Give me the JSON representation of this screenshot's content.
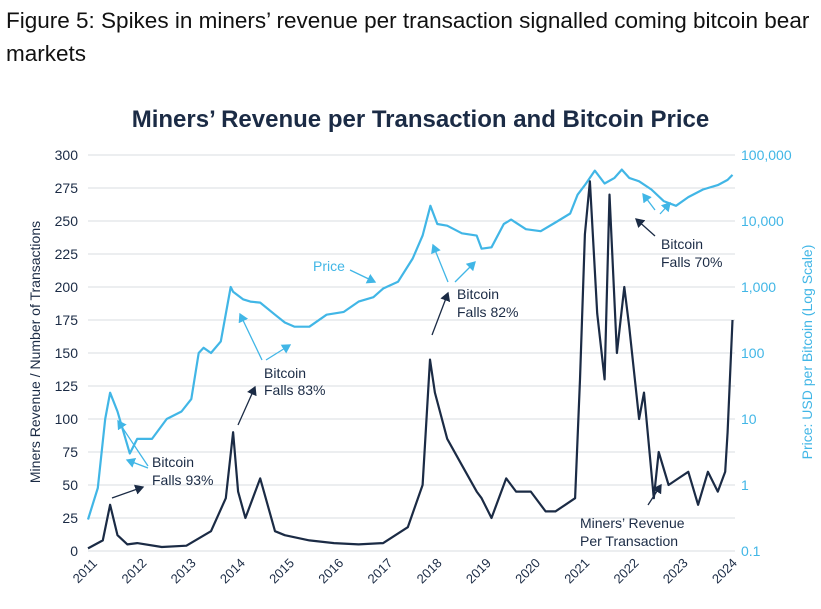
{
  "figure_caption": "Figure 5: Spikes in miners’ revenue per transaction signalled coming bitcoin bear markets",
  "chart_data": {
    "type": "line",
    "title": "Miners’ Revenue per Transaction and Bitcoin Price",
    "ylabel_left": "Miners Revenue / Number of Transactions",
    "ylabel_right": "Price: USD per Bitcoin (Log Scale)",
    "ylim_left": [
      0,
      300
    ],
    "ylim_right": [
      0.1,
      100000
    ],
    "right_scale": "log",
    "x_ticks": [
      "2011",
      "2012",
      "2013",
      "2014",
      "2015",
      "2016",
      "2017",
      "2018",
      "2019",
      "2020",
      "2021",
      "2022",
      "2023",
      "2024"
    ],
    "left_ticks": [
      "0",
      "25",
      "50",
      "75",
      "100",
      "125",
      "150",
      "175",
      "200",
      "225",
      "250",
      "275",
      "300"
    ],
    "right_ticks": [
      "0.1",
      "1",
      "10",
      "100",
      "1,000",
      "10,000",
      "100,000"
    ],
    "grid": "horizontal",
    "colors": {
      "price": "#41b6e6",
      "revenue": "#1b2b45"
    },
    "series": [
      {
        "label": "Price",
        "axis": "right",
        "x": [
          2011.0,
          2011.2,
          2011.35,
          2011.45,
          2011.6,
          2011.85,
          2012.0,
          2012.3,
          2012.6,
          2012.9,
          2013.1,
          2013.25,
          2013.35,
          2013.5,
          2013.7,
          2013.9,
          2013.95,
          2014.15,
          2014.3,
          2014.5,
          2014.8,
          2015.0,
          2015.2,
          2015.5,
          2015.85,
          2016.2,
          2016.5,
          2016.8,
          2017.0,
          2017.3,
          2017.6,
          2017.8,
          2017.96,
          2018.1,
          2018.3,
          2018.6,
          2018.9,
          2019.0,
          2019.2,
          2019.45,
          2019.6,
          2019.9,
          2020.2,
          2020.5,
          2020.8,
          2020.95,
          2021.1,
          2021.3,
          2021.5,
          2021.7,
          2021.85,
          2022.0,
          2022.2,
          2022.45,
          2022.7,
          2022.95,
          2023.2,
          2023.5,
          2023.8,
          2024.0,
          2024.1
        ],
        "values": [
          0.3,
          0.9,
          10,
          25,
          13,
          3,
          5,
          5,
          10,
          13,
          20,
          100,
          120,
          100,
          150,
          1000,
          850,
          650,
          600,
          580,
          380,
          290,
          250,
          250,
          380,
          420,
          600,
          700,
          950,
          1200,
          2700,
          6000,
          17000,
          9000,
          8500,
          6500,
          6000,
          3800,
          4000,
          9000,
          10500,
          7500,
          7000,
          9500,
          13000,
          25000,
          35000,
          58000,
          37000,
          45000,
          60000,
          45000,
          40000,
          30000,
          20000,
          17000,
          23000,
          30000,
          35000,
          42000,
          50000
        ]
      },
      {
        "label": "Miners' Revenue Per Transaction",
        "axis": "left",
        "x": [
          2011.0,
          2011.3,
          2011.45,
          2011.6,
          2011.8,
          2012.0,
          2012.5,
          2013.0,
          2013.5,
          2013.8,
          2013.95,
          2014.05,
          2014.2,
          2014.5,
          2014.8,
          2015.0,
          2015.5,
          2016.0,
          2016.5,
          2017.0,
          2017.5,
          2017.8,
          2017.95,
          2018.05,
          2018.3,
          2018.6,
          2018.9,
          2019.0,
          2019.2,
          2019.5,
          2019.7,
          2020.0,
          2020.3,
          2020.5,
          2020.7,
          2020.9,
          2021.0,
          2021.1,
          2021.2,
          2021.35,
          2021.5,
          2021.6,
          2021.75,
          2021.9,
          2022.0,
          2022.2,
          2022.3,
          2022.5,
          2022.6,
          2022.8,
          2023.0,
          2023.2,
          2023.4,
          2023.6,
          2023.8,
          2023.95,
          2024.0,
          2024.1
        ],
        "values": [
          2,
          8,
          35,
          12,
          5,
          6,
          3,
          4,
          15,
          40,
          90,
          45,
          25,
          55,
          15,
          12,
          8,
          6,
          5,
          6,
          18,
          50,
          145,
          120,
          85,
          65,
          45,
          40,
          25,
          55,
          45,
          45,
          30,
          30,
          35,
          40,
          130,
          240,
          280,
          180,
          130,
          270,
          150,
          200,
          170,
          100,
          120,
          40,
          75,
          50,
          55,
          60,
          35,
          60,
          45,
          60,
          90,
          175
        ]
      }
    ],
    "annotations": [
      {
        "text": "Price",
        "color": "blue"
      },
      {
        "text": "Bitcoin",
        "color": "dark"
      },
      {
        "text": "Falls 93%",
        "color": "dark"
      },
      {
        "text": "Bitcoin",
        "color": "dark"
      },
      {
        "text": "Falls 83%",
        "color": "dark"
      },
      {
        "text": "Bitcoin",
        "color": "dark"
      },
      {
        "text": "Falls 82%",
        "color": "dark"
      },
      {
        "text": "Bitcoin",
        "color": "dark"
      },
      {
        "text": "Falls 70%",
        "color": "dark"
      },
      {
        "text": "Miners’ Revenue",
        "color": "dark"
      },
      {
        "text": "Per Transaction",
        "color": "dark"
      }
    ]
  }
}
